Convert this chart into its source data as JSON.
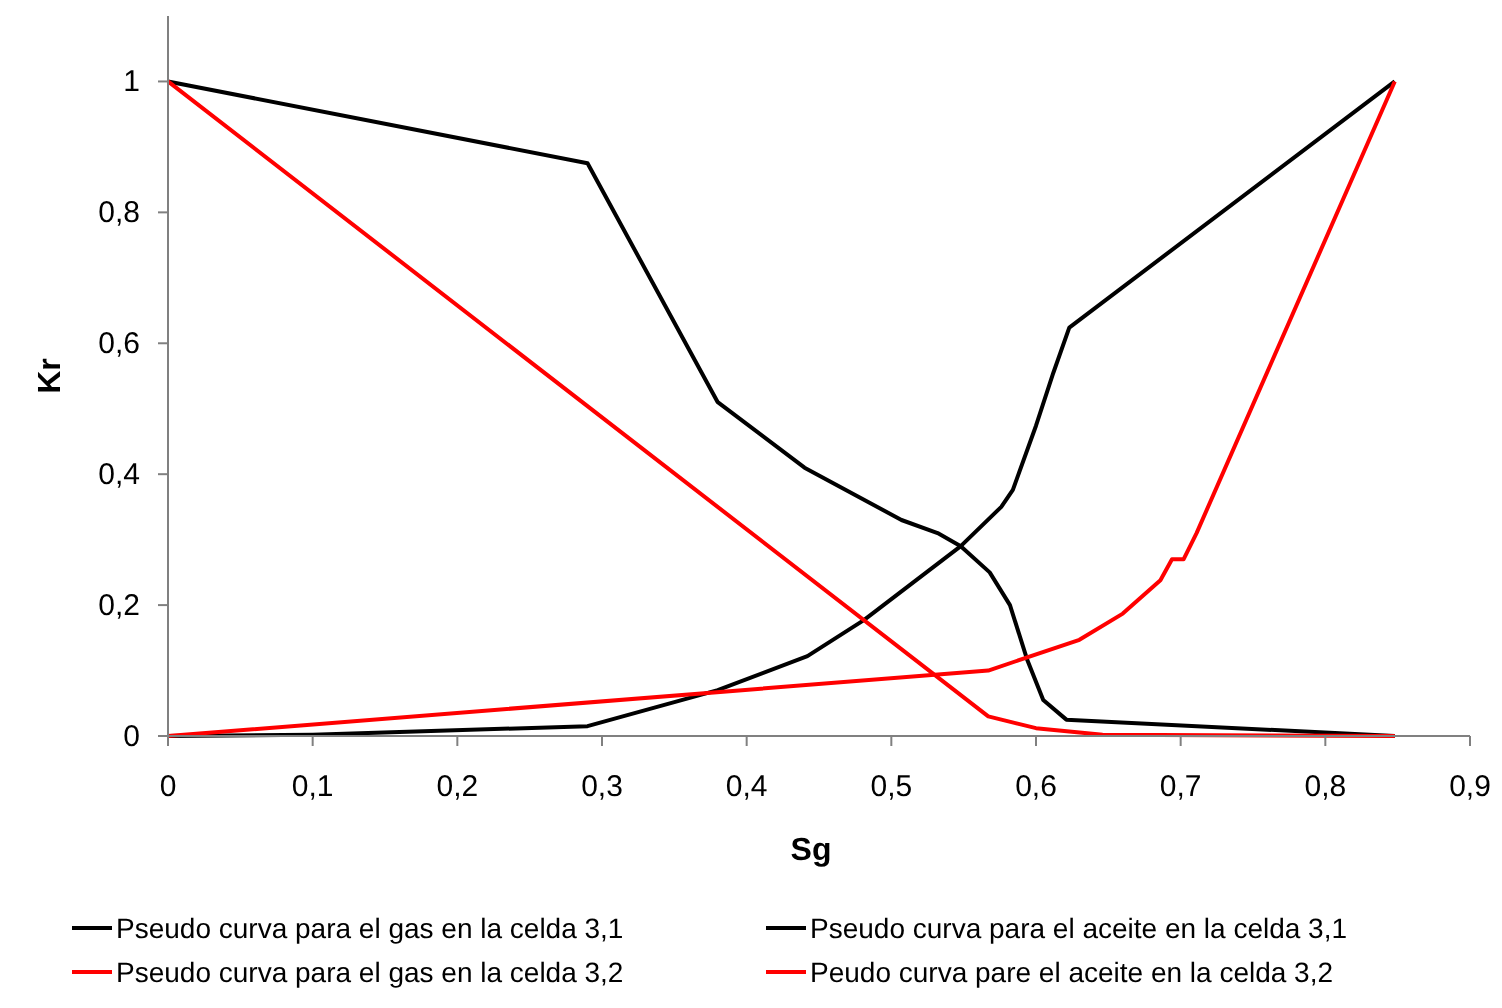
{
  "chart_data": {
    "type": "line",
    "xlabel": "Sg",
    "ylabel": "Kr",
    "xlim": [
      0,
      0.9
    ],
    "ylim": [
      0,
      1.1
    ],
    "xticks": [
      0,
      {
        "value": 0.1,
        "label": "0,1"
      },
      {
        "value": 0.2,
        "label": "0,2"
      },
      {
        "value": 0.3,
        "label": "0,3"
      },
      {
        "value": 0.4,
        "label": "0,4"
      },
      {
        "value": 0.5,
        "label": "0,5"
      },
      {
        "value": 0.6,
        "label": "0,6"
      },
      {
        "value": 0.7,
        "label": "0,7"
      },
      {
        "value": 0.8,
        "label": "0,8"
      },
      {
        "value": 0.9,
        "label": "0,9"
      }
    ],
    "yticks": [
      0,
      {
        "value": 0.2,
        "label": "0,2"
      },
      {
        "value": 0.4,
        "label": "0,4"
      },
      {
        "value": 0.6,
        "label": "0,6"
      },
      {
        "value": 0.8,
        "label": "0,8"
      },
      1
    ],
    "grid": false,
    "legend": "bottom",
    "marker": "none",
    "line_style": "solid",
    "series": [
      {
        "name": "Pseudo curva para el gas en la celda 3,1",
        "color": "#000000",
        "x": [
          0,
          0.29,
          0.38,
          0.44,
          0.507,
          0.532,
          0.548,
          0.568,
          0.582,
          0.594,
          0.605,
          0.621,
          0.848
        ],
        "values": [
          1,
          0.875,
          0.51,
          0.41,
          0.33,
          0.31,
          0.29,
          0.25,
          0.2,
          0.116,
          0.055,
          0.025,
          0
        ]
      },
      {
        "name": "Pseudo curva para el aceite en la celda 3,1",
        "color": "#000000",
        "x": [
          0,
          0.1,
          0.29,
          0.38,
          0.442,
          0.481,
          0.548,
          0.576,
          0.584,
          0.6,
          0.612,
          0.623,
          0.848
        ],
        "values": [
          0,
          0.002,
          0.015,
          0.07,
          0.122,
          0.177,
          0.29,
          0.35,
          0.376,
          0.474,
          0.555,
          0.624,
          1
        ]
      },
      {
        "name": "Pseudo curva para el gas en la celda 3,2",
        "color": "#ff0000",
        "x": [
          0,
          0.567,
          0.6,
          0.646,
          0.848
        ],
        "values": [
          1,
          0.03,
          0.012,
          0.002,
          0
        ]
      },
      {
        "name": "Peudo curva pare el aceite en la celda 3,2",
        "color": "#ff0000",
        "x": [
          0,
          0.567,
          0.63,
          0.66,
          0.686,
          0.694,
          0.702,
          0.711,
          0.848
        ],
        "values": [
          0,
          0.1,
          0.147,
          0.187,
          0.238,
          0.27,
          0.27,
          0.31,
          1
        ]
      }
    ]
  }
}
